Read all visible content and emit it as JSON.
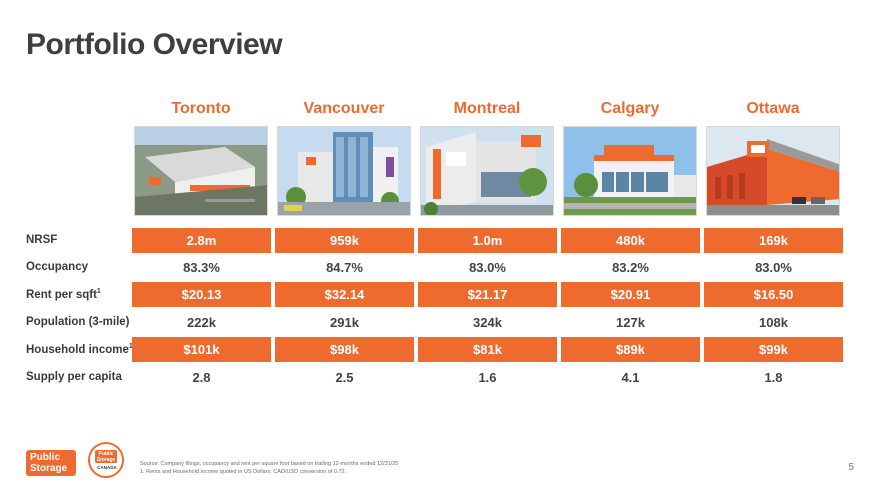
{
  "title": "Portfolio Overview",
  "accent_color": "#ef6a2e",
  "cities": [
    "Toronto",
    "Vancouver",
    "Montreal",
    "Calgary",
    "Ottawa"
  ],
  "rows": [
    {
      "label": "NRSF",
      "sup": "",
      "banded": true,
      "values": [
        "2.8m",
        "959k",
        "1.0m",
        "480k",
        "169k"
      ]
    },
    {
      "label": "Occupancy",
      "sup": "",
      "banded": false,
      "values": [
        "83.3%",
        "84.7%",
        "83.0%",
        "83.2%",
        "83.0%"
      ]
    },
    {
      "label": "Rent per sqft",
      "sup": "1",
      "banded": true,
      "values": [
        "$20.13",
        "$32.14",
        "$21.17",
        "$20.91",
        "$16.50"
      ]
    },
    {
      "label": "Population (3-mile)",
      "sup": "",
      "banded": false,
      "values": [
        "222k",
        "291k",
        "324k",
        "127k",
        "108k"
      ]
    },
    {
      "label": "Household income",
      "sup": "1",
      "banded": true,
      "values": [
        "$101k",
        "$98k",
        "$81k",
        "$89k",
        "$99k"
      ]
    },
    {
      "label": "Supply per capita",
      "sup": "",
      "banded": false,
      "values": [
        "2.8",
        "2.5",
        "1.6",
        "4.1",
        "1.8"
      ]
    }
  ],
  "logo": {
    "line1": "Public",
    "line2": "Storage",
    "canada": "CANADA"
  },
  "footnotes": {
    "source": "Source: Company filings, occupancy and rent per square foot based on trailing 12-months ended 12/31/25",
    "note": "1.     Rents and Household income quoted in US Dollars. CAD/USD conversion of 0.72."
  },
  "page_number": "5"
}
